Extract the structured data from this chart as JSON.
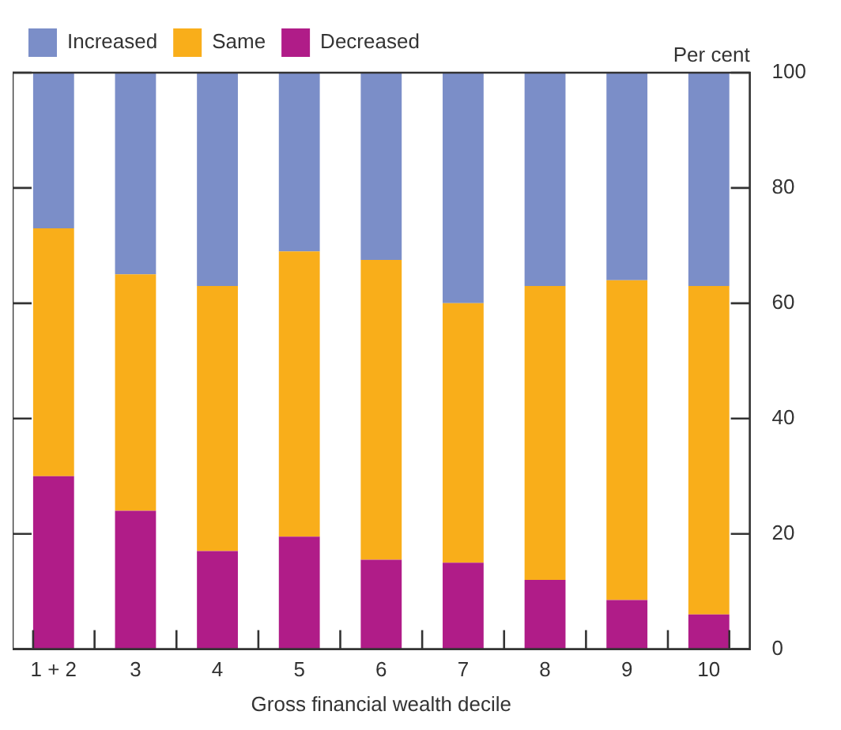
{
  "chart_data": {
    "type": "bar",
    "stacked": true,
    "xlabel": "Gross financial wealth decile",
    "ylabel": "Per cent",
    "categories": [
      "1 + 2",
      "3",
      "4",
      "5",
      "6",
      "7",
      "8",
      "9",
      "10"
    ],
    "series": [
      {
        "name": "Decreased",
        "color": "#b01c88",
        "values": [
          30,
          24,
          17,
          19.5,
          15.5,
          15,
          12,
          8.5,
          6
        ]
      },
      {
        "name": "Same",
        "color": "#f9ae1a",
        "values": [
          43,
          41,
          46,
          49.5,
          52,
          45,
          51,
          55.5,
          57
        ]
      },
      {
        "name": "Increased",
        "color": "#7b8ec8",
        "values": [
          27,
          35,
          37,
          31,
          32.5,
          40,
          37,
          36,
          37
        ]
      }
    ],
    "ylim": [
      0,
      100
    ],
    "yticks": [
      0,
      20,
      40,
      60,
      80,
      100
    ],
    "grid": false,
    "legend": "top left"
  }
}
